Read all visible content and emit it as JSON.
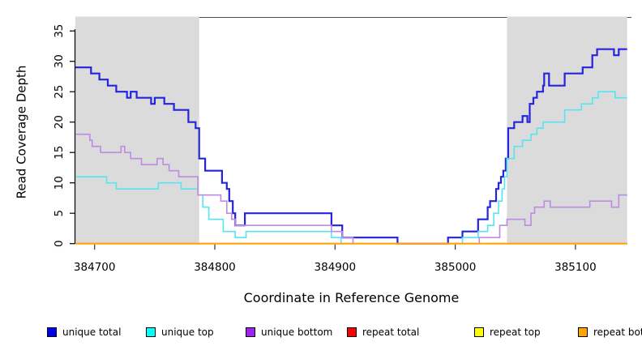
{
  "chart_data": {
    "type": "line",
    "subtype": "step-coverage",
    "title": "",
    "xlabel": "Coordinate in Reference Genome",
    "ylabel": "Read Coverage Depth",
    "x_ticks": [
      384700,
      384800,
      384900,
      385000,
      385100
    ],
    "y_ticks": [
      0,
      5,
      10,
      15,
      20,
      25,
      30,
      35
    ],
    "xlim": [
      384684,
      385149
    ],
    "ylim": [
      0,
      37.3
    ],
    "grid": false,
    "legend_position": "bottom",
    "axis_color": "#000000",
    "box_top_color": "#4d4d4d",
    "shaded_regions": {
      "color": "#dbdbdb",
      "ranges": [
        [
          384684,
          384787
        ],
        [
          385043,
          385143
        ]
      ]
    },
    "series": [
      {
        "name": "unique total",
        "line_color": "#2424dd",
        "legend_color": "#0000ee",
        "line_width": 2.2,
        "points": [
          [
            384684,
            29
          ],
          [
            384697,
            28
          ],
          [
            384704,
            27
          ],
          [
            384711,
            26
          ],
          [
            384718,
            25
          ],
          [
            384727,
            24
          ],
          [
            384730,
            25
          ],
          [
            384735,
            24
          ],
          [
            384747,
            23
          ],
          [
            384750,
            24
          ],
          [
            384758,
            23
          ],
          [
            384766,
            22
          ],
          [
            384778,
            20
          ],
          [
            384784,
            19
          ],
          [
            384787,
            14
          ],
          [
            384792,
            12
          ],
          [
            384806,
            10
          ],
          [
            384810,
            9
          ],
          [
            384812,
            7
          ],
          [
            384815,
            5
          ],
          [
            384817,
            3
          ],
          [
            384825,
            5
          ],
          [
            384897,
            3
          ],
          [
            384906,
            1
          ],
          [
            384952,
            0
          ],
          [
            384994,
            1
          ],
          [
            385006,
            2
          ],
          [
            385019,
            4
          ],
          [
            385027,
            6
          ],
          [
            385029,
            7
          ],
          [
            385034,
            9
          ],
          [
            385036,
            10
          ],
          [
            385038,
            11
          ],
          [
            385040,
            12
          ],
          [
            385042,
            14
          ],
          [
            385044,
            19
          ],
          [
            385049,
            20
          ],
          [
            385056,
            21
          ],
          [
            385060,
            20
          ],
          [
            385062,
            23
          ],
          [
            385065,
            24
          ],
          [
            385068,
            25
          ],
          [
            385073,
            26
          ],
          [
            385074,
            28
          ],
          [
            385078,
            26
          ],
          [
            385091,
            28
          ],
          [
            385106,
            29
          ],
          [
            385114,
            31
          ],
          [
            385118,
            32
          ],
          [
            385132,
            31
          ],
          [
            385136,
            32
          ],
          [
            385143,
            32
          ]
        ]
      },
      {
        "name": "unique top",
        "line_color": "#55e5f0",
        "legend_color": "#00ffff",
        "line_width": 1.6,
        "points": [
          [
            384684,
            11
          ],
          [
            384710,
            10
          ],
          [
            384718,
            9
          ],
          [
            384753,
            10
          ],
          [
            384772,
            9
          ],
          [
            384786,
            8
          ],
          [
            384790,
            6
          ],
          [
            384795,
            4
          ],
          [
            384807,
            2
          ],
          [
            384817,
            1
          ],
          [
            384826,
            2
          ],
          [
            384897,
            1
          ],
          [
            384905,
            0
          ],
          [
            385006,
            1
          ],
          [
            385019,
            2
          ],
          [
            385027,
            3
          ],
          [
            385032,
            5
          ],
          [
            385036,
            7
          ],
          [
            385039,
            9
          ],
          [
            385041,
            11
          ],
          [
            385043,
            14
          ],
          [
            385049,
            16
          ],
          [
            385056,
            17
          ],
          [
            385063,
            18
          ],
          [
            385068,
            19
          ],
          [
            385073,
            20
          ],
          [
            385091,
            22
          ],
          [
            385105,
            23
          ],
          [
            385114,
            24
          ],
          [
            385119,
            25
          ],
          [
            385133,
            24
          ],
          [
            385143,
            24
          ]
        ]
      },
      {
        "name": "unique bottom",
        "line_color": "#bd8be3",
        "legend_color": "#a020f0",
        "line_width": 1.6,
        "points": [
          [
            384684,
            18
          ],
          [
            384696,
            17
          ],
          [
            384698,
            16
          ],
          [
            384705,
            15
          ],
          [
            384722,
            16
          ],
          [
            384725,
            15
          ],
          [
            384730,
            14
          ],
          [
            384739,
            13
          ],
          [
            384752,
            14
          ],
          [
            384757,
            13
          ],
          [
            384762,
            12
          ],
          [
            384770,
            11
          ],
          [
            384786,
            8
          ],
          [
            384805,
            7
          ],
          [
            384810,
            5
          ],
          [
            384814,
            4
          ],
          [
            384817,
            3
          ],
          [
            384897,
            2
          ],
          [
            384906,
            1
          ],
          [
            384915,
            0
          ],
          [
            385020,
            1
          ],
          [
            385037,
            3
          ],
          [
            385043,
            4
          ],
          [
            385058,
            3
          ],
          [
            385063,
            5
          ],
          [
            385066,
            6
          ],
          [
            385074,
            7
          ],
          [
            385079,
            6
          ],
          [
            385112,
            7
          ],
          [
            385130,
            6
          ],
          [
            385136,
            8
          ],
          [
            385143,
            8
          ]
        ]
      },
      {
        "name": "repeat total",
        "line_color": "#dd2222",
        "legend_color": "#ff0000",
        "line_width": 1.6,
        "points": [
          [
            384684,
            0
          ],
          [
            385143,
            0
          ]
        ]
      },
      {
        "name": "repeat top",
        "line_color": "#f0e020",
        "legend_color": "#ffff00",
        "line_width": 1.6,
        "points": [
          [
            384684,
            0
          ],
          [
            385143,
            0
          ]
        ]
      },
      {
        "name": "repeat bottom",
        "line_color": "#ffa500",
        "legend_color": "#ffa500",
        "line_width": 2,
        "points": [
          [
            384684,
            0
          ],
          [
            385143,
            0
          ]
        ]
      }
    ]
  }
}
